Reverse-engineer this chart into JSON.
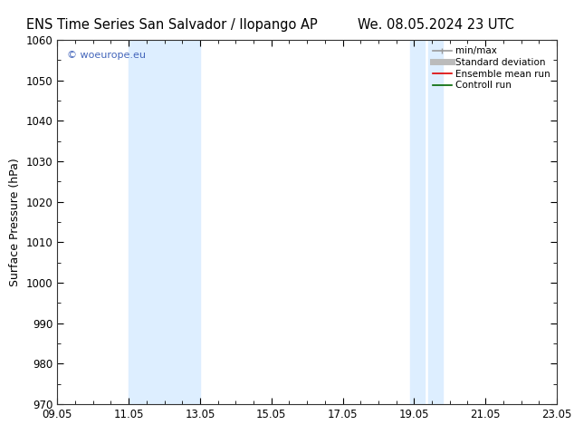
{
  "title_left": "ENS Time Series San Salvador / Ilopango AP",
  "title_right": "We. 08.05.2024 23 UTC",
  "ylabel": "Surface Pressure (hPa)",
  "ylim": [
    970,
    1060
  ],
  "yticks": [
    970,
    980,
    990,
    1000,
    1010,
    1020,
    1030,
    1040,
    1050,
    1060
  ],
  "xlim_start": 0.0,
  "xlim_end": 14.0,
  "xtick_positions": [
    0,
    2,
    4,
    6,
    8,
    10,
    12,
    14
  ],
  "xtick_labels": [
    "09.05",
    "11.05",
    "13.05",
    "15.05",
    "17.05",
    "19.05",
    "21.05",
    "23.05"
  ],
  "shaded_bands": [
    {
      "x_start": 2.0,
      "x_end": 4.0
    },
    {
      "x_start": 9.9,
      "x_end": 10.3
    },
    {
      "x_start": 10.4,
      "x_end": 10.8
    }
  ],
  "shade_color": "#ddeeff",
  "background_color": "#ffffff",
  "watermark_text": "© woeurope.eu",
  "watermark_color": "#4466bb",
  "legend_entries": [
    {
      "label": "min/max",
      "color": "#999999",
      "lw": 1.2,
      "style": "line_with_ticks"
    },
    {
      "label": "Standard deviation",
      "color": "#bbbbbb",
      "lw": 5,
      "style": "line"
    },
    {
      "label": "Ensemble mean run",
      "color": "#dd0000",
      "lw": 1.2,
      "style": "line"
    },
    {
      "label": "Controll run",
      "color": "#006600",
      "lw": 1.2,
      "style": "line"
    }
  ],
  "title_fontsize": 10.5,
  "label_fontsize": 9,
  "tick_fontsize": 8.5,
  "legend_fontsize": 7.5
}
